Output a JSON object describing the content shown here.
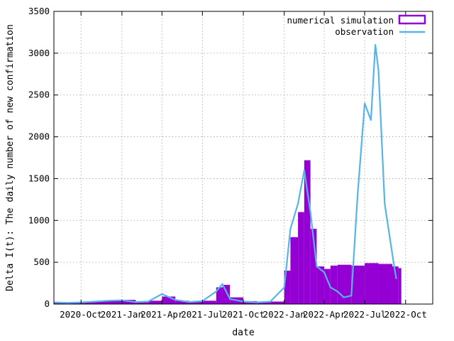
{
  "chart_data": {
    "type": "bar",
    "xlabel": "date",
    "ylabel": "Delta I(t): The daily number of new confirmation",
    "ylim": [
      0,
      3500
    ],
    "y_ticks": [
      "0",
      "500",
      "1000",
      "1500",
      "2000",
      "2500",
      "3000",
      "3500"
    ],
    "x_ticks": [
      "2020-Oct",
      "2021-Jan",
      "2021-Apr",
      "2021-Jul",
      "2021-Oct",
      "2022-Jan",
      "2022-Apr",
      "2022-Jul",
      "2022-Oct"
    ],
    "grid": true,
    "legend_position": "top-right",
    "series": [
      {
        "name": "numerical simulation",
        "style": "filled-bars",
        "color": "#9400D3",
        "points": [
          [
            "2020-08-01",
            15
          ],
          [
            "2020-09-01",
            20
          ],
          [
            "2020-10-01",
            25
          ],
          [
            "2020-11-01",
            35
          ],
          [
            "2020-12-01",
            45
          ],
          [
            "2021-01-01",
            50
          ],
          [
            "2021-02-01",
            30
          ],
          [
            "2021-03-01",
            40
          ],
          [
            "2021-04-01",
            90
          ],
          [
            "2021-05-01",
            40
          ],
          [
            "2021-06-01",
            30
          ],
          [
            "2021-07-01",
            40
          ],
          [
            "2021-08-01",
            200
          ],
          [
            "2021-08-15",
            230
          ],
          [
            "2021-09-01",
            80
          ],
          [
            "2021-10-01",
            35
          ],
          [
            "2021-11-01",
            25
          ],
          [
            "2021-12-01",
            30
          ],
          [
            "2022-01-01",
            400
          ],
          [
            "2022-01-15",
            800
          ],
          [
            "2022-02-01",
            1100
          ],
          [
            "2022-02-15",
            1720
          ],
          [
            "2022-03-01",
            900
          ],
          [
            "2022-03-15",
            450
          ],
          [
            "2022-04-01",
            420
          ],
          [
            "2022-04-15",
            460
          ],
          [
            "2022-05-01",
            470
          ],
          [
            "2022-06-01",
            460
          ],
          [
            "2022-07-01",
            490
          ],
          [
            "2022-08-01",
            480
          ],
          [
            "2022-09-01",
            450
          ],
          [
            "2022-09-15",
            430
          ]
        ]
      },
      {
        "name": "observation",
        "style": "lines",
        "color": "#56B4E9",
        "points": [
          [
            "2020-08-01",
            20
          ],
          [
            "2020-09-01",
            15
          ],
          [
            "2020-10-01",
            20
          ],
          [
            "2020-11-01",
            30
          ],
          [
            "2020-12-01",
            40
          ],
          [
            "2021-01-01",
            45
          ],
          [
            "2021-02-01",
            25
          ],
          [
            "2021-03-01",
            30
          ],
          [
            "2021-04-01",
            120
          ],
          [
            "2021-05-01",
            50
          ],
          [
            "2021-06-01",
            25
          ],
          [
            "2021-07-01",
            35
          ],
          [
            "2021-08-01",
            150
          ],
          [
            "2021-08-15",
            240
          ],
          [
            "2021-09-01",
            60
          ],
          [
            "2021-10-01",
            30
          ],
          [
            "2021-11-01",
            20
          ],
          [
            "2021-12-01",
            30
          ],
          [
            "2022-01-01",
            200
          ],
          [
            "2022-01-15",
            900
          ],
          [
            "2022-02-01",
            1200
          ],
          [
            "2022-02-15",
            1600
          ],
          [
            "2022-03-01",
            1100
          ],
          [
            "2022-03-15",
            450
          ],
          [
            "2022-04-01",
            380
          ],
          [
            "2022-04-15",
            200
          ],
          [
            "2022-05-01",
            150
          ],
          [
            "2022-05-15",
            80
          ],
          [
            "2022-06-01",
            100
          ],
          [
            "2022-06-15",
            1300
          ],
          [
            "2022-07-01",
            2400
          ],
          [
            "2022-07-15",
            2200
          ],
          [
            "2022-07-25",
            3100
          ],
          [
            "2022-08-01",
            2800
          ],
          [
            "2022-08-15",
            1200
          ],
          [
            "2022-09-01",
            600
          ],
          [
            "2022-09-10",
            300
          ]
        ]
      }
    ]
  }
}
